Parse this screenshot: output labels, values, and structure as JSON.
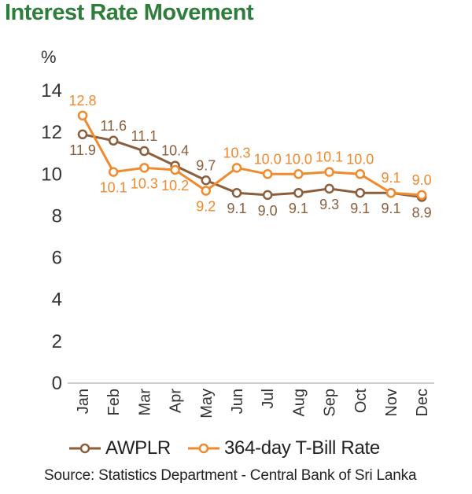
{
  "title": "Interest Rate Movement",
  "source": "Source: Statistics Department - Central Bank of Sri Lanka",
  "colors": {
    "awplr": "#8b5e3c",
    "tbill": "#f08a2c",
    "title": "#2e7d3a"
  },
  "chart_data": {
    "type": "line",
    "title": "Interest Rate Movement",
    "ylabel": "%",
    "xlabel": "",
    "ylim": [
      0,
      14
    ],
    "yticks": [
      0,
      2,
      4,
      6,
      8,
      10,
      12,
      14
    ],
    "categories": [
      "Jan",
      "Feb",
      "Mar",
      "Apr",
      "May",
      "Jun",
      "Jul",
      "Aug",
      "Sep",
      "Oct",
      "Nov",
      "Dec"
    ],
    "grid": false,
    "legend_position": "bottom",
    "series": [
      {
        "name": "AWPLR",
        "color": "#8b5e3c",
        "values": [
          11.9,
          11.6,
          11.1,
          10.4,
          9.7,
          9.1,
          9.0,
          9.1,
          9.3,
          9.1,
          9.1,
          8.9
        ],
        "labels": [
          "11.9",
          "11.6",
          "11.1",
          "10.4",
          "9.7",
          "9.1",
          "9.0",
          "9.1",
          "9.3",
          "9.1",
          "9.1",
          "8.9"
        ]
      },
      {
        "name": "364-day T-Bill Rate",
        "color": "#f08a2c",
        "values": [
          12.8,
          10.1,
          10.3,
          10.2,
          9.2,
          10.3,
          10.0,
          10.0,
          10.1,
          10.0,
          9.1,
          9.0
        ],
        "labels": [
          "12.8",
          "10.1",
          "10.3",
          "10.2",
          "9.2",
          "10.3",
          "10.0",
          "10.0",
          "10.1",
          "10.0",
          "9.1",
          "9.0"
        ]
      }
    ]
  }
}
